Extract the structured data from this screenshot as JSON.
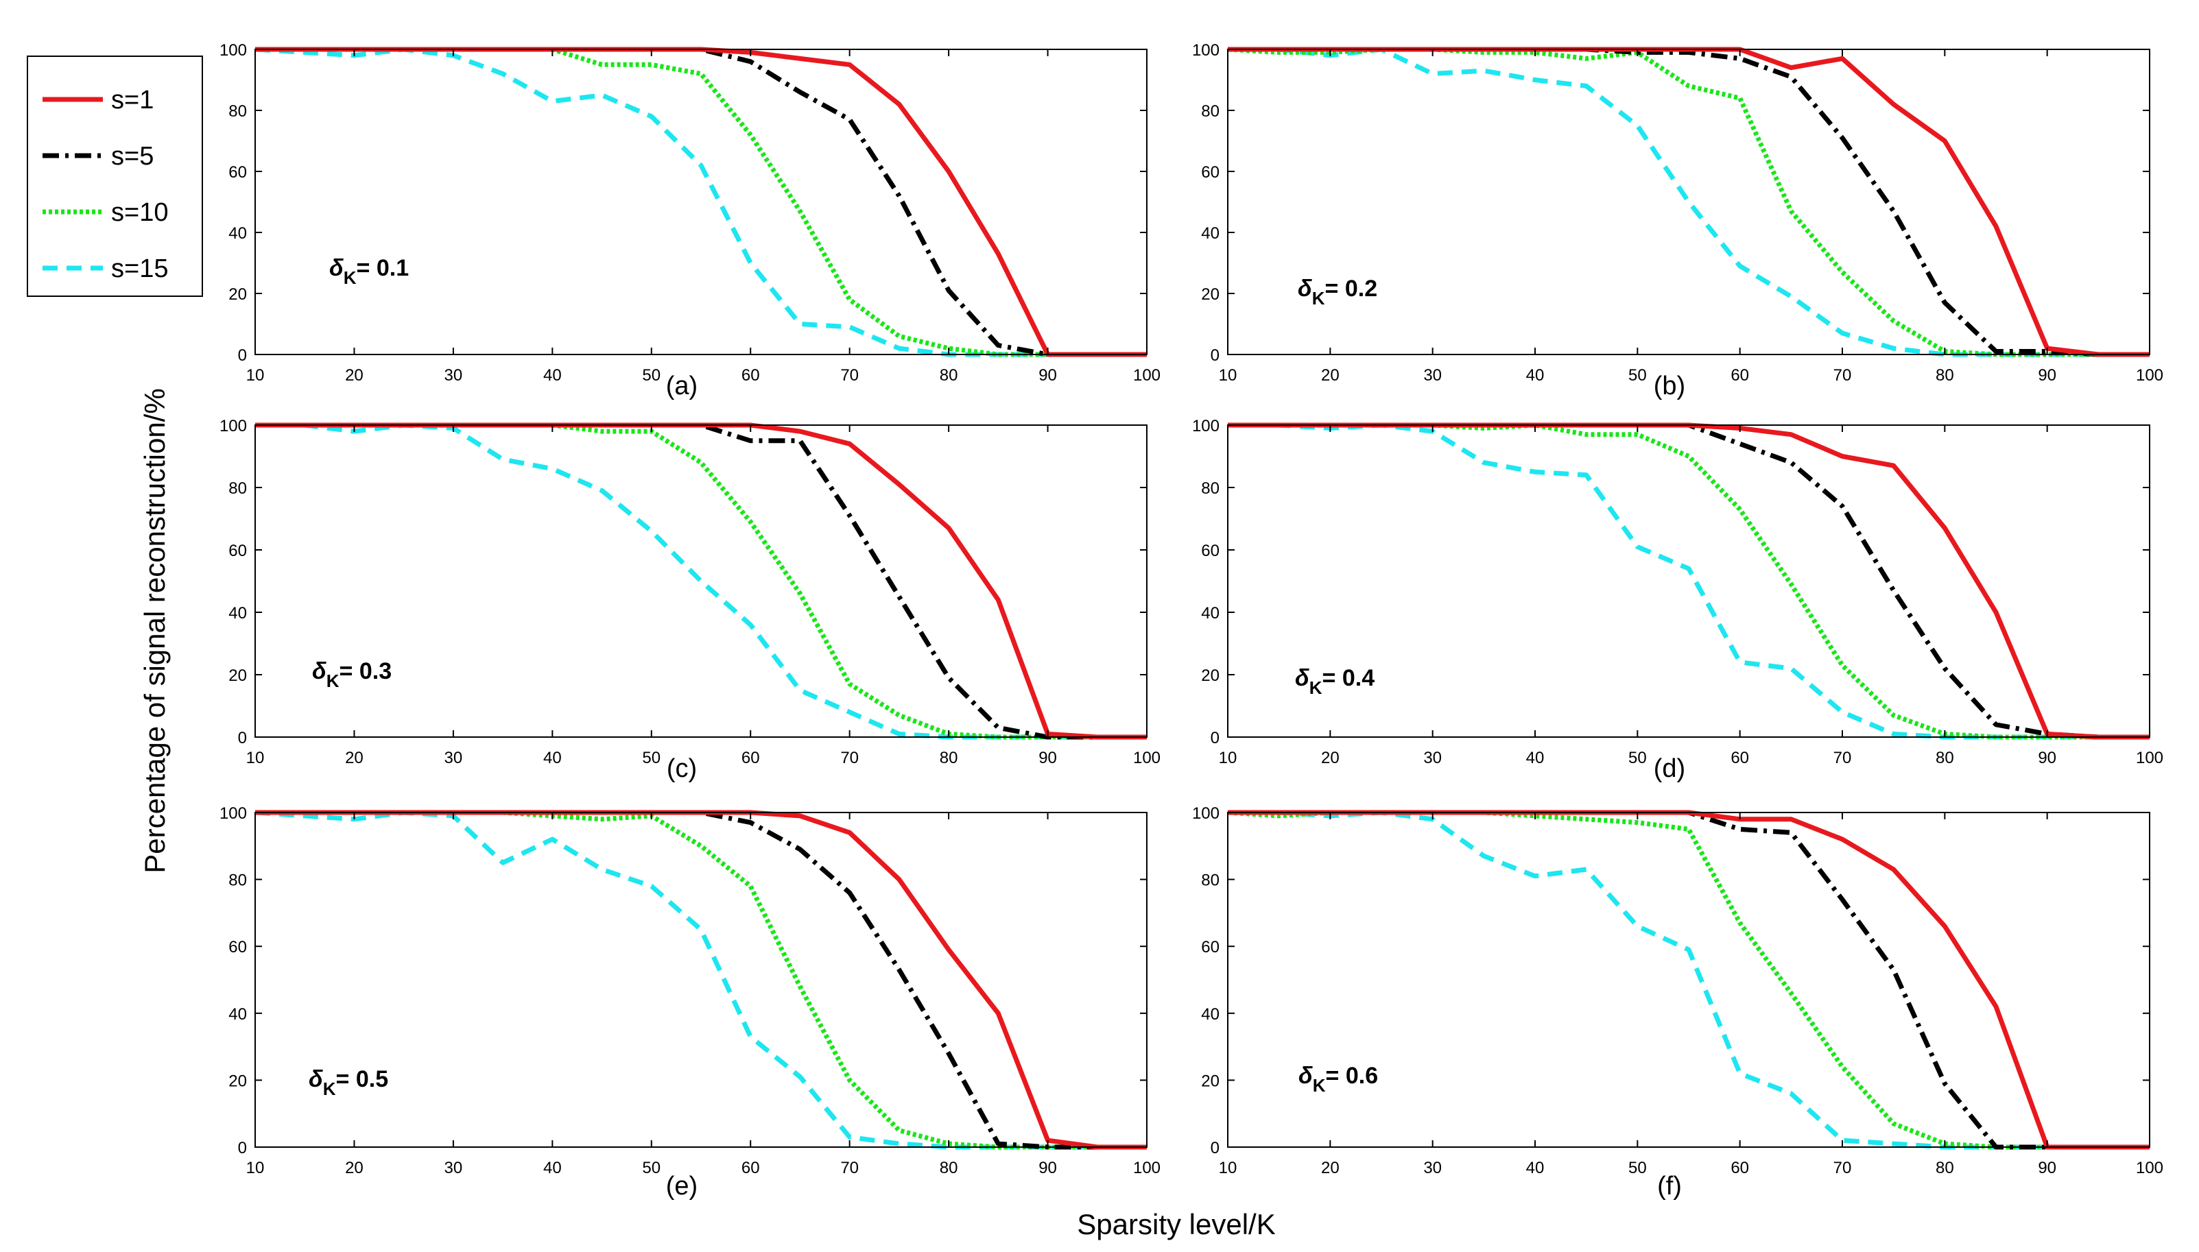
{
  "chart_data": {
    "type": "line",
    "x": [
      10,
      15,
      20,
      25,
      30,
      35,
      40,
      45,
      50,
      55,
      60,
      65,
      70,
      75,
      80,
      85,
      90,
      95,
      100
    ],
    "xlim": [
      10,
      100
    ],
    "ylim": [
      0,
      100
    ],
    "xticks": [
      10,
      20,
      30,
      40,
      50,
      60,
      70,
      80,
      90,
      100
    ],
    "yticks": [
      0,
      20,
      40,
      60,
      80,
      100
    ],
    "xlabel": "Sparsity level/K",
    "ylabel": "Percentage of signal reconstruction/%",
    "legend": {
      "placement": "top-left outside",
      "entries": [
        {
          "label": "s=1",
          "color": "#e8191e",
          "style": "solid"
        },
        {
          "label": "s=5",
          "color": "#000000",
          "style": "dashdot"
        },
        {
          "label": "s=10",
          "color": "#19e619",
          "style": "dotted"
        },
        {
          "label": "s=15",
          "color": "#1ee6f0",
          "style": "dashed"
        }
      ]
    },
    "panels": [
      {
        "label": "(a)",
        "delta_symbol": "δ",
        "delta_sub": "K",
        "delta_value": "= 0.1",
        "series": [
          {
            "name": "s=1",
            "values": [
              100,
              100,
              100,
              100,
              100,
              100,
              100,
              100,
              100,
              100,
              99,
              97,
              95,
              82,
              60,
              33,
              0,
              0,
              0
            ]
          },
          {
            "name": "s=5",
            "values": [
              100,
              100,
              100,
              100,
              100,
              100,
              100,
              100,
              100,
              100,
              96,
              86,
              77,
              52,
              21,
              3,
              0,
              0,
              0
            ]
          },
          {
            "name": "s=10",
            "values": [
              100,
              100,
              100,
              100,
              100,
              100,
              100,
              95,
              95,
              92,
              72,
              47,
              18,
              6,
              2,
              0,
              0,
              0,
              0
            ]
          },
          {
            "name": "s=15",
            "values": [
              100,
              99,
              98,
              100,
              98,
              92,
              83,
              85,
              78,
              62,
              30,
              10,
              9,
              2,
              0,
              0,
              0,
              0,
              0
            ]
          }
        ]
      },
      {
        "label": "(b)",
        "delta_symbol": "δ",
        "delta_sub": "K",
        "delta_value": "= 0.2",
        "series": [
          {
            "name": "s=1",
            "values": [
              100,
              100,
              100,
              100,
              100,
              100,
              100,
              100,
              100,
              100,
              100,
              94,
              97,
              82,
              70,
              42,
              2,
              0,
              0
            ]
          },
          {
            "name": "s=5",
            "values": [
              100,
              100,
              100,
              100,
              100,
              100,
              100,
              100,
              99,
              99,
              97,
              91,
              71,
              47,
              17,
              1,
              1,
              0,
              0
            ]
          },
          {
            "name": "s=10",
            "values": [
              100,
              99,
              99,
              100,
              100,
              99,
              99,
              97,
              99,
              88,
              84,
              47,
              27,
              11,
              1,
              0,
              0,
              0,
              0
            ]
          },
          {
            "name": "s=15",
            "values": [
              100,
              100,
              98,
              100,
              92,
              93,
              90,
              88,
              75,
              50,
              29,
              19,
              7,
              2,
              0,
              0,
              0,
              0,
              0
            ]
          }
        ]
      },
      {
        "label": "(c)",
        "delta_symbol": "δ",
        "delta_sub": "K",
        "delta_value": "= 0.3",
        "series": [
          {
            "name": "s=1",
            "values": [
              100,
              100,
              100,
              100,
              100,
              100,
              100,
              100,
              100,
              100,
              100,
              98,
              94,
              81,
              67,
              44,
              1,
              0,
              0
            ]
          },
          {
            "name": "s=5",
            "values": [
              100,
              100,
              100,
              100,
              100,
              100,
              100,
              100,
              100,
              100,
              95,
              95,
              71,
              45,
              19,
              3,
              0,
              0,
              0
            ]
          },
          {
            "name": "s=10",
            "values": [
              100,
              100,
              100,
              100,
              100,
              100,
              100,
              98,
              98,
              88,
              69,
              46,
              17,
              7,
              1,
              0,
              0,
              0,
              0
            ]
          },
          {
            "name": "s=15",
            "values": [
              100,
              100,
              98,
              100,
              99,
              89,
              86,
              79,
              66,
              50,
              36,
              15,
              8,
              1,
              0,
              0,
              0,
              0,
              0
            ]
          }
        ]
      },
      {
        "label": "(d)",
        "delta_symbol": "δ",
        "delta_sub": "K",
        "delta_value": "= 0.4",
        "series": [
          {
            "name": "s=1",
            "values": [
              100,
              100,
              100,
              100,
              100,
              100,
              100,
              100,
              100,
              100,
              99,
              97,
              90,
              87,
              67,
              40,
              1,
              0,
              0
            ]
          },
          {
            "name": "s=5",
            "values": [
              100,
              100,
              100,
              100,
              100,
              100,
              100,
              100,
              100,
              100,
              94,
              88,
              74,
              47,
              22,
              4,
              1,
              0,
              0
            ]
          },
          {
            "name": "s=10",
            "values": [
              100,
              100,
              100,
              100,
              100,
              99,
              100,
              97,
              97,
              90,
              73,
              49,
              23,
              7,
              1,
              0,
              0,
              0,
              0
            ]
          },
          {
            "name": "s=15",
            "values": [
              100,
              100,
              99,
              100,
              98,
              88,
              85,
              84,
              61,
              54,
              24,
              22,
              8,
              1,
              0,
              0,
              0,
              0,
              0
            ]
          }
        ]
      },
      {
        "label": "(e)",
        "delta_symbol": "δ",
        "delta_sub": "K",
        "delta_value": "= 0.5",
        "series": [
          {
            "name": "s=1",
            "values": [
              100,
              100,
              100,
              100,
              100,
              100,
              100,
              100,
              100,
              100,
              100,
              99,
              94,
              80,
              59,
              40,
              2,
              0,
              0
            ]
          },
          {
            "name": "s=5",
            "values": [
              100,
              100,
              100,
              100,
              100,
              100,
              100,
              100,
              100,
              100,
              97,
              89,
              76,
              53,
              28,
              1,
              0,
              0,
              0
            ]
          },
          {
            "name": "s=10",
            "values": [
              100,
              100,
              100,
              100,
              100,
              100,
              99,
              98,
              99,
              90,
              78,
              48,
              20,
              5,
              1,
              0,
              0,
              0,
              0
            ]
          },
          {
            "name": "s=15",
            "values": [
              100,
              99,
              98,
              100,
              99,
              85,
              92,
              83,
              78,
              65,
              33,
              21,
              3,
              1,
              0,
              0,
              0,
              0,
              0
            ]
          }
        ]
      },
      {
        "label": "(f)",
        "delta_symbol": "δ",
        "delta_sub": "K",
        "delta_value": "= 0.6",
        "series": [
          {
            "name": "s=1",
            "values": [
              100,
              100,
              100,
              100,
              100,
              100,
              100,
              100,
              100,
              100,
              98,
              98,
              92,
              83,
              66,
              42,
              0,
              0,
              0
            ]
          },
          {
            "name": "s=5",
            "values": [
              100,
              100,
              100,
              100,
              100,
              100,
              100,
              100,
              100,
              100,
              95,
              94,
              74,
              53,
              19,
              0,
              0,
              0,
              0
            ]
          },
          {
            "name": "s=10",
            "values": [
              100,
              99,
              100,
              100,
              100,
              100,
              99,
              98,
              97,
              95,
              67,
              46,
              24,
              7,
              1,
              0,
              0,
              0,
              0
            ]
          },
          {
            "name": "s=15",
            "values": [
              100,
              100,
              99,
              100,
              98,
              87,
              81,
              83,
              66,
              59,
              22,
              16,
              2,
              1,
              0,
              0,
              0,
              0,
              0
            ]
          }
        ]
      }
    ]
  }
}
